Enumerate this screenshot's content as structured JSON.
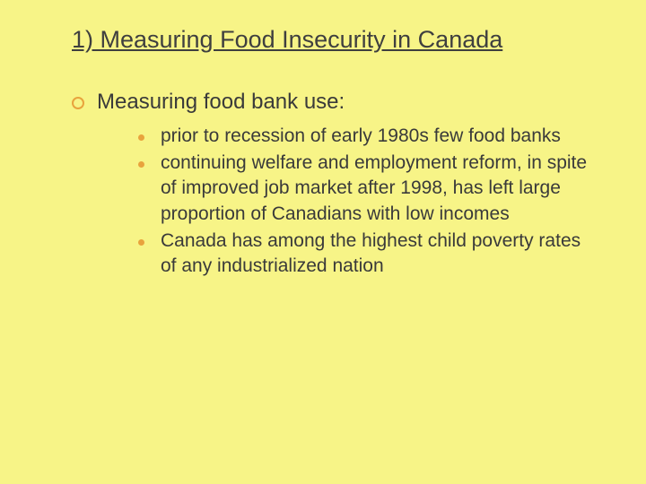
{
  "slide": {
    "background_color": "#f7f487",
    "title": {
      "text": "1) Measuring Food Insecurity in Canada",
      "color": "#3f3f3f",
      "fontsize": 27,
      "underline": true
    },
    "bullet_colors": {
      "circle_border": "#e8a33d",
      "dot_fill": "#e8a33d"
    },
    "level1": {
      "text": "Measuring food bank use:",
      "fontsize": 24,
      "color": "#3a3a3a"
    },
    "level2": {
      "fontsize": 21,
      "color": "#3a3a3a",
      "items": [
        "prior to recession of early 1980s few food banks",
        "continuing welfare and employment reform, in spite of improved job market after 1998, has left large proportion of Canadians with low incomes",
        "Canada has among the highest child poverty rates of any industrialized nation"
      ]
    }
  }
}
